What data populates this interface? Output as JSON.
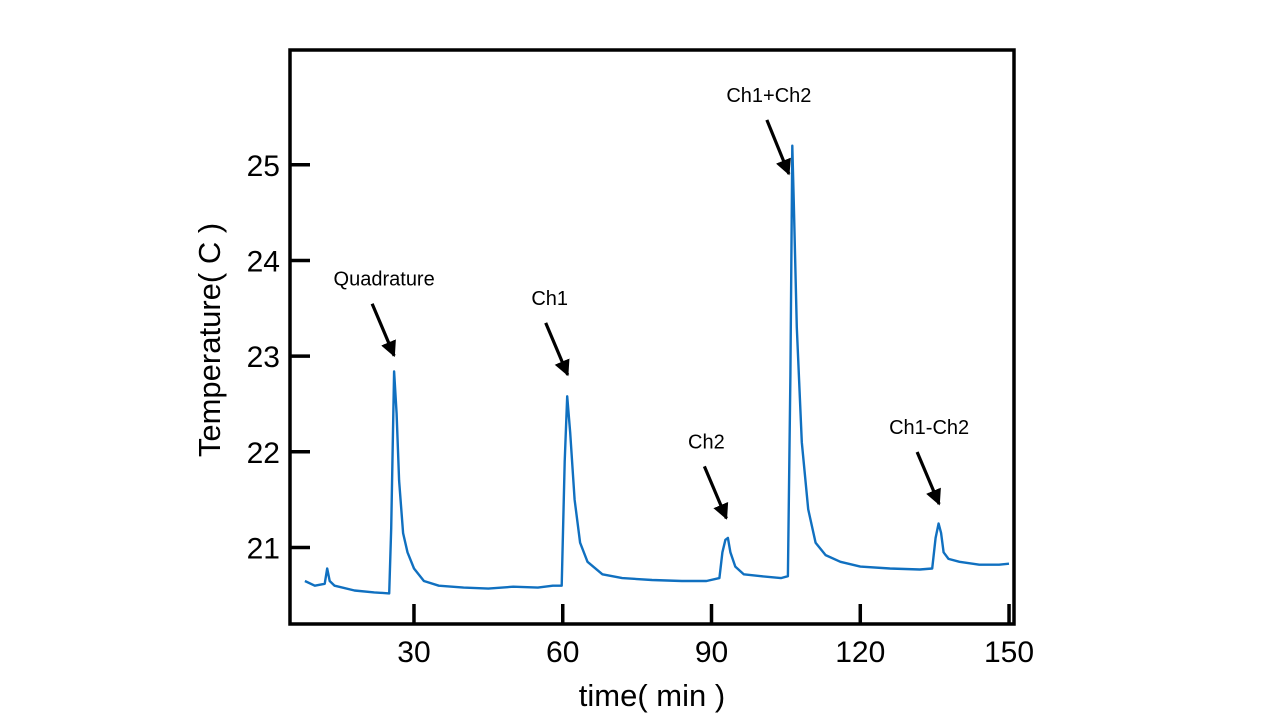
{
  "chart_data": {
    "type": "line",
    "title": "",
    "xlabel": "time( min )",
    "ylabel": "Temperature( C )",
    "xlim": [
      5,
      151
    ],
    "ylim": [
      20.2,
      26.2
    ],
    "xticks": [
      30,
      60,
      90,
      120,
      150
    ],
    "yticks": [
      21,
      22,
      23,
      24,
      25
    ],
    "grid": false,
    "series": [
      {
        "name": "temperature",
        "color": "#1070c0",
        "x": [
          8,
          10,
          12,
          12.5,
          13,
          14,
          18,
          22,
          25,
          25.4,
          26,
          26.5,
          27,
          27.8,
          28.7,
          30,
          32,
          35,
          40,
          45,
          50,
          55,
          58,
          59.8,
          60.4,
          60.9,
          61.5,
          62.4,
          63.5,
          65,
          68,
          72,
          78,
          84,
          89,
          91.6,
          92.2,
          92.8,
          93.3,
          93.8,
          94.8,
          96.5,
          100,
          104,
          105.4,
          105.9,
          106.3,
          106.6,
          107.2,
          108.2,
          109.5,
          111,
          113,
          116,
          120,
          126,
          132,
          134.5,
          135.2,
          135.8,
          136.3,
          136.8,
          137.8,
          140,
          144,
          148,
          150
        ],
        "values": [
          20.65,
          20.6,
          20.62,
          20.78,
          20.65,
          20.6,
          20.55,
          20.53,
          20.52,
          21.2,
          22.84,
          22.4,
          21.7,
          21.15,
          20.95,
          20.78,
          20.65,
          20.6,
          20.58,
          20.57,
          20.59,
          20.58,
          20.6,
          20.6,
          21.9,
          22.58,
          22.2,
          21.5,
          21.05,
          20.85,
          20.72,
          20.68,
          20.66,
          20.65,
          20.65,
          20.68,
          20.95,
          21.08,
          21.1,
          20.95,
          20.8,
          20.72,
          20.7,
          20.68,
          20.7,
          22.8,
          25.2,
          24.6,
          23.3,
          22.1,
          21.4,
          21.05,
          20.92,
          20.85,
          20.8,
          20.78,
          20.77,
          20.78,
          21.1,
          21.25,
          21.15,
          20.95,
          20.88,
          20.85,
          20.82,
          20.82,
          20.83
        ]
      }
    ],
    "annotations": [
      {
        "text": "Quadrature",
        "x": 26,
        "y": 22.9
      },
      {
        "text": "Ch1",
        "x": 61,
        "y": 22.7
      },
      {
        "text": "Ch2",
        "x": 93,
        "y": 21.2
      },
      {
        "text": "Ch1+Ch2",
        "x": 105.6,
        "y": 24.8
      },
      {
        "text": "Ch1-Ch2",
        "x": 135.9,
        "y": 21.35
      }
    ]
  }
}
